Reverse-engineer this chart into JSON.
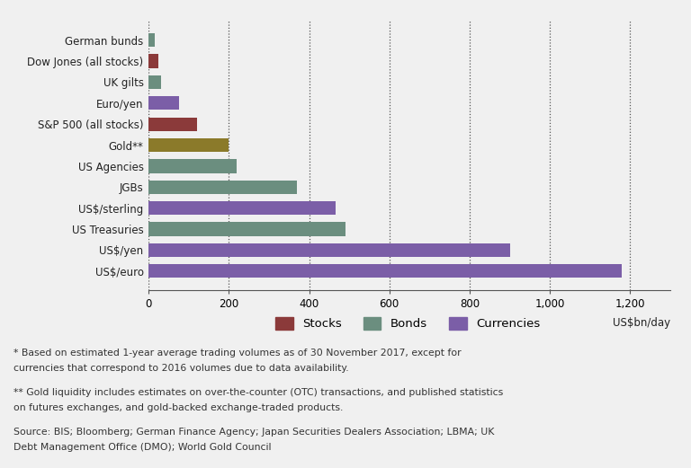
{
  "categories": [
    "US$/euro",
    "US$/yen",
    "US Treasuries",
    "US$/sterling",
    "JGBs",
    "US Agencies",
    "Gold**",
    "S&P 500 (all stocks)",
    "Euro/yen",
    "UK gilts",
    "Dow Jones (all stocks)",
    "German bunds"
  ],
  "values": [
    1180,
    900,
    490,
    465,
    370,
    220,
    200,
    120,
    75,
    30,
    25,
    15
  ],
  "colors": [
    "#7b5ea7",
    "#7b5ea7",
    "#6b8e7f",
    "#7b5ea7",
    "#6b8e7f",
    "#6b8e7f",
    "#8b7a2a",
    "#8b3a3a",
    "#7b5ea7",
    "#6b8e7f",
    "#8b3a3a",
    "#6b8e7f"
  ],
  "legend_labels": [
    "Stocks",
    "Bonds",
    "Currencies"
  ],
  "legend_colors": [
    "#8b3a3a",
    "#6b8e7f",
    "#7b5ea7"
  ],
  "xlabel": "US$bn/day",
  "xlim": [
    0,
    1300
  ],
  "xticks": [
    0,
    200,
    400,
    600,
    800,
    1000,
    1200
  ],
  "background_color": "#f0f0f0",
  "footnote1": "* Based on estimated 1-year average trading volumes as of 30 November 2017, except for currencies that correspond to 2016 volumes due to data availability.",
  "footnote2": "** Gold liquidity includes estimates on over-the-counter (OTC) transactions, and published statistics on futures exchanges, and gold-backed exchange-traded products.",
  "source": "Source: BIS; Bloomberg; German Finance Agency; Japan Securities Dealers Association; LBMA; UK Debt Management Office (DMO); World Gold Council"
}
